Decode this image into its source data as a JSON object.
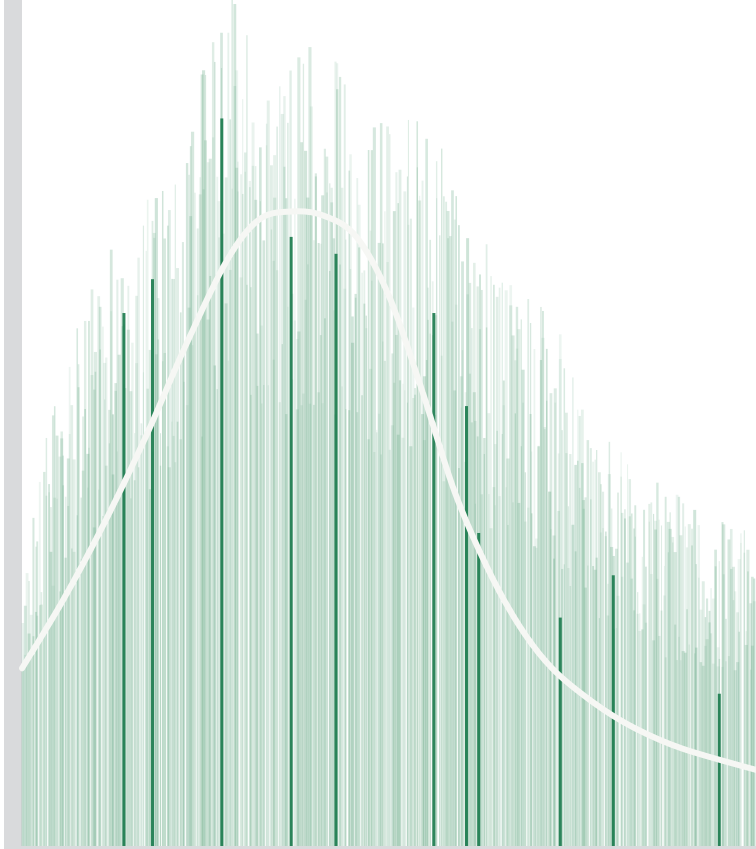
{
  "colors": {
    "background": "#ffffff",
    "axis_strip": "#d9dadc",
    "bar_light": "#6fae8c",
    "bar_dark": "#1a7a4c",
    "curve": "#f6f7f4"
  },
  "chart_data": {
    "type": "bar",
    "grid": false,
    "legend": "none",
    "x_range": [
      0,
      180
    ],
    "ylim": [
      0,
      100
    ],
    "dense_envelope": [
      {
        "x": 0,
        "y": 29
      },
      {
        "x": 8,
        "y": 53
      },
      {
        "x": 20,
        "y": 66
      },
      {
        "x": 32,
        "y": 75
      },
      {
        "x": 44,
        "y": 87
      },
      {
        "x": 52,
        "y": 99
      },
      {
        "x": 60,
        "y": 93
      },
      {
        "x": 68,
        "y": 90
      },
      {
        "x": 76,
        "y": 94
      },
      {
        "x": 84,
        "y": 81
      },
      {
        "x": 92,
        "y": 86
      },
      {
        "x": 100,
        "y": 80
      },
      {
        "x": 108,
        "y": 76
      },
      {
        "x": 116,
        "y": 67
      },
      {
        "x": 124,
        "y": 66
      },
      {
        "x": 132,
        "y": 58
      },
      {
        "x": 140,
        "y": 48
      },
      {
        "x": 148,
        "y": 44
      },
      {
        "x": 156,
        "y": 41
      },
      {
        "x": 164,
        "y": 39
      },
      {
        "x": 172,
        "y": 37
      },
      {
        "x": 180,
        "y": 35
      }
    ],
    "highlight_bars": [
      {
        "x": 25,
        "y": 63
      },
      {
        "x": 32,
        "y": 67
      },
      {
        "x": 49,
        "y": 86
      },
      {
        "x": 66,
        "y": 72
      },
      {
        "x": 77,
        "y": 70
      },
      {
        "x": 101,
        "y": 63
      },
      {
        "x": 109,
        "y": 52
      },
      {
        "x": 112,
        "y": 37
      },
      {
        "x": 132,
        "y": 27
      },
      {
        "x": 145,
        "y": 32
      },
      {
        "x": 171,
        "y": 18
      }
    ],
    "smooth_curve": [
      {
        "x": 0,
        "y": 21
      },
      {
        "x": 10,
        "y": 29
      },
      {
        "x": 20,
        "y": 38
      },
      {
        "x": 30,
        "y": 48
      },
      {
        "x": 40,
        "y": 59
      },
      {
        "x": 50,
        "y": 69
      },
      {
        "x": 58,
        "y": 74
      },
      {
        "x": 66,
        "y": 75
      },
      {
        "x": 74,
        "y": 74.5
      },
      {
        "x": 82,
        "y": 72
      },
      {
        "x": 90,
        "y": 65
      },
      {
        "x": 98,
        "y": 54
      },
      {
        "x": 106,
        "y": 42
      },
      {
        "x": 114,
        "y": 33
      },
      {
        "x": 122,
        "y": 26
      },
      {
        "x": 130,
        "y": 21
      },
      {
        "x": 140,
        "y": 17
      },
      {
        "x": 150,
        "y": 14
      },
      {
        "x": 162,
        "y": 11.5
      },
      {
        "x": 180,
        "y": 9
      }
    ]
  }
}
